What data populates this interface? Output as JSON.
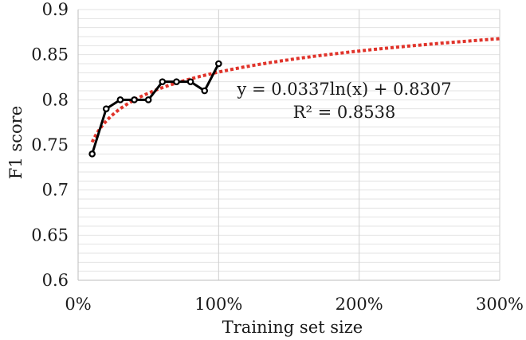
{
  "chart_data": {
    "type": "line",
    "xlabel": "Training set size",
    "ylabel": "F1 score",
    "xlim": [
      0,
      300
    ],
    "ylim": [
      0.6,
      0.9
    ],
    "x_ticks": [
      {
        "value": 0,
        "label": "0%"
      },
      {
        "value": 100,
        "label": "100%"
      },
      {
        "value": 200,
        "label": "200%"
      },
      {
        "value": 300,
        "label": "300%"
      }
    ],
    "y_ticks": [
      {
        "value": 0.6,
        "label": "0.6"
      },
      {
        "value": 0.65,
        "label": "0.65"
      },
      {
        "value": 0.7,
        "label": "0.7"
      },
      {
        "value": 0.75,
        "label": "0.75"
      },
      {
        "value": 0.8,
        "label": "0.8"
      },
      {
        "value": 0.85,
        "label": "0.85"
      },
      {
        "value": 0.9,
        "label": "0.9"
      }
    ],
    "grid": {
      "vertical_major": true,
      "horizontal_minor_step": 0.01
    },
    "series": [
      {
        "x": [
          10,
          20,
          30,
          40,
          50,
          60,
          70,
          80,
          90,
          100
        ],
        "values": [
          0.74,
          0.79,
          0.8,
          0.8,
          0.8,
          0.82,
          0.82,
          0.82,
          0.81,
          0.84
        ],
        "color": "#000000"
      }
    ],
    "trendline": {
      "kind": "logarithmic",
      "a": 0.0337,
      "b": 0.8307,
      "x_range": [
        10,
        300
      ],
      "color": "#e0332a",
      "equation_label": "y = 0.0337ln(x) + 0.8307",
      "r2_label": "R² = 0.8538"
    }
  }
}
